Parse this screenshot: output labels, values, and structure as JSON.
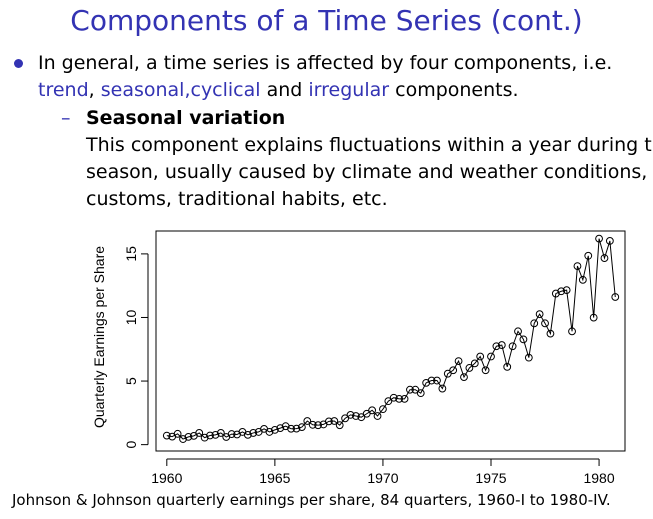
{
  "slide": {
    "title": "Components of a Time Series (cont.)",
    "bullet": {
      "pre": "In general, a time series is affected by four components, i.e.",
      "trend": "trend",
      "comma": ", ",
      "seasonal_cyclical": "seasonal,cyclical",
      "and": " and ",
      "irregular": "irregular",
      "post": " components."
    },
    "sub": {
      "dash": "–",
      "title": "Seasonal variation",
      "lines": [
        "This component explains fluctuations within a year during the",
        "season, usually caused by climate and weather conditions,",
        "customs, traditional habits, etc."
      ]
    },
    "caption": "Johnson & Johnson quarterly earnings per share, 84 quarters, 1960-I to 1980-IV."
  },
  "chart_data": {
    "type": "line",
    "markers": "open-circle",
    "ylabel": "Quarterly Earnings per Share",
    "xlabel": "",
    "xlim": [
      1959.5,
      1981.2
    ],
    "ylim": [
      -0.5,
      16.8
    ],
    "x_ticks": [
      1960,
      1965,
      1970,
      1975,
      1980
    ],
    "y_ticks": [
      0,
      5,
      10,
      15
    ],
    "x_start": 1960.0,
    "frequency": 4,
    "values": [
      0.71,
      0.63,
      0.85,
      0.44,
      0.61,
      0.69,
      0.92,
      0.55,
      0.72,
      0.77,
      0.92,
      0.6,
      0.83,
      0.8,
      1.0,
      0.77,
      0.92,
      1.0,
      1.24,
      1.0,
      1.16,
      1.3,
      1.45,
      1.25,
      1.26,
      1.38,
      1.86,
      1.56,
      1.53,
      1.59,
      1.83,
      1.86,
      1.53,
      2.07,
      2.34,
      2.25,
      2.16,
      2.43,
      2.7,
      2.25,
      2.79,
      3.42,
      3.69,
      3.6,
      3.6,
      4.32,
      4.32,
      4.05,
      4.86,
      5.04,
      5.04,
      4.41,
      5.58,
      5.85,
      6.57,
      5.31,
      6.03,
      6.39,
      6.93,
      5.85,
      6.93,
      7.74,
      7.83,
      6.12,
      7.74,
      8.91,
      8.28,
      6.84,
      9.54,
      10.26,
      9.54,
      8.73,
      11.88,
      12.06,
      12.15,
      8.91,
      14.04,
      12.96,
      14.85,
      9.99,
      16.2,
      14.67,
      16.02,
      11.61
    ]
  }
}
